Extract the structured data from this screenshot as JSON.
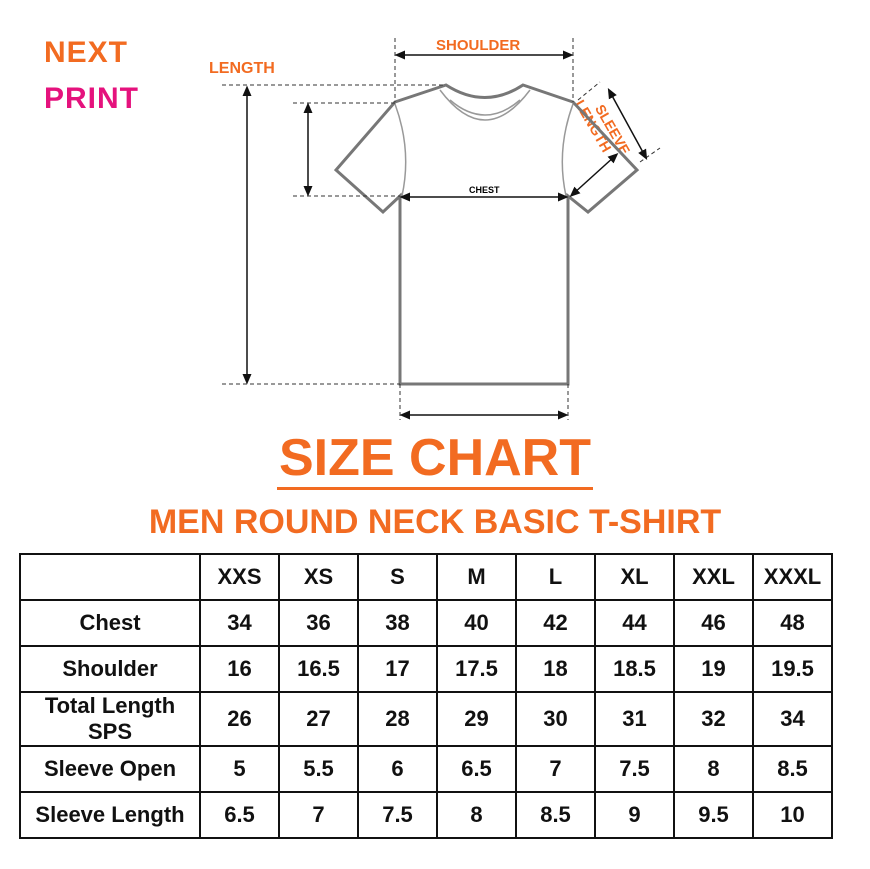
{
  "logo": {
    "line1": "NEXT",
    "line2": "PRINT",
    "colors": {
      "next": "#f26b21",
      "print": "#e5127d"
    }
  },
  "diagram": {
    "length": "LENGTH",
    "shoulder": "SHOULDER",
    "sleeve_length": [
      "SLEEVE",
      "LENGTH"
    ],
    "chest": "CHEST"
  },
  "title": "SIZE CHART",
  "subtitle": "MEN ROUND NECK BASIC T-SHIRT",
  "accent": "#f26b21",
  "table": {
    "sizes": [
      "XXS",
      "XS",
      "S",
      "M",
      "L",
      "XL",
      "XXL",
      "XXXL"
    ],
    "rows": [
      {
        "label": "Chest",
        "values": [
          "34",
          "36",
          "38",
          "40",
          "42",
          "44",
          "46",
          "48"
        ]
      },
      {
        "label": "Shoulder",
        "values": [
          "16",
          "16.5",
          "17",
          "17.5",
          "18",
          "18.5",
          "19",
          "19.5"
        ]
      },
      {
        "label": "Total Length SPS",
        "values": [
          "26",
          "27",
          "28",
          "29",
          "30",
          "31",
          "32",
          "34"
        ]
      },
      {
        "label": "Sleeve Open",
        "values": [
          "5",
          "5.5",
          "6",
          "6.5",
          "7",
          "7.5",
          "8",
          "8.5"
        ]
      },
      {
        "label": "Sleeve Length",
        "values": [
          "6.5",
          "7",
          "7.5",
          "8",
          "8.5",
          "9",
          "9.5",
          "10"
        ]
      }
    ]
  }
}
